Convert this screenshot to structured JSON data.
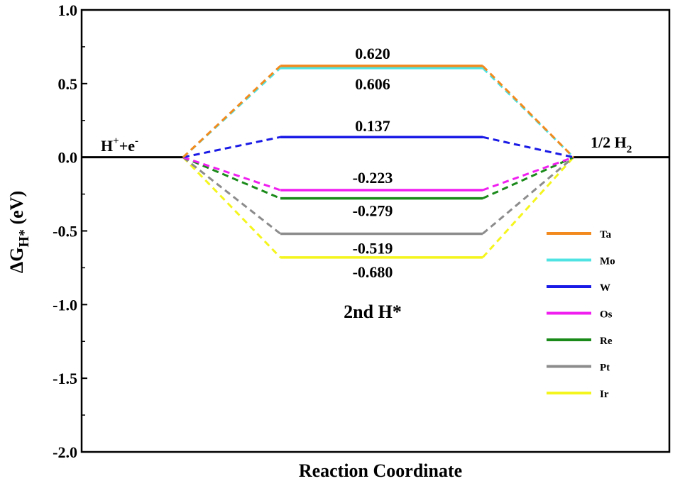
{
  "chart_data": {
    "type": "line",
    "xlabel": "Reaction Coordinate",
    "ylabel": "ΔG",
    "ylabel_subscript": "H*",
    "ylabel_unit": " (eV)",
    "ylim": [
      -2.0,
      1.0
    ],
    "yticks": [
      1.0,
      0.5,
      0.0,
      -0.5,
      -1.0,
      -1.5,
      -2.0
    ],
    "ytick_labels": [
      "1.0",
      "0.5",
      "0.0",
      "-0.5",
      "-1.0",
      "-1.5",
      "-2.0"
    ],
    "states": {
      "initial": {
        "text": "H",
        "sup1": "+",
        "mid": "+e",
        "sup2": "-"
      },
      "final": {
        "text": "1/2 H",
        "sub": "2"
      }
    },
    "panel_label": "2nd H*",
    "legend_position": "right",
    "series": [
      {
        "name": "Ta",
        "value": 0.62,
        "label": "0.620",
        "color": "#F28A1E"
      },
      {
        "name": "Mo",
        "value": 0.606,
        "label": "0.606",
        "color": "#4FE3E3"
      },
      {
        "name": "W",
        "value": 0.137,
        "label": "0.137",
        "color": "#1A1AE6"
      },
      {
        "name": "Os",
        "value": -0.223,
        "label": "-0.223",
        "color": "#F01FF0"
      },
      {
        "name": "Re",
        "value": -0.279,
        "label": "-0.279",
        "color": "#1A8A1A"
      },
      {
        "name": "Pt",
        "value": -0.519,
        "label": "-0.519",
        "color": "#8C8C8C"
      },
      {
        "name": "Ir",
        "value": -0.68,
        "label": "-0.680",
        "color": "#F5F51E"
      }
    ]
  }
}
